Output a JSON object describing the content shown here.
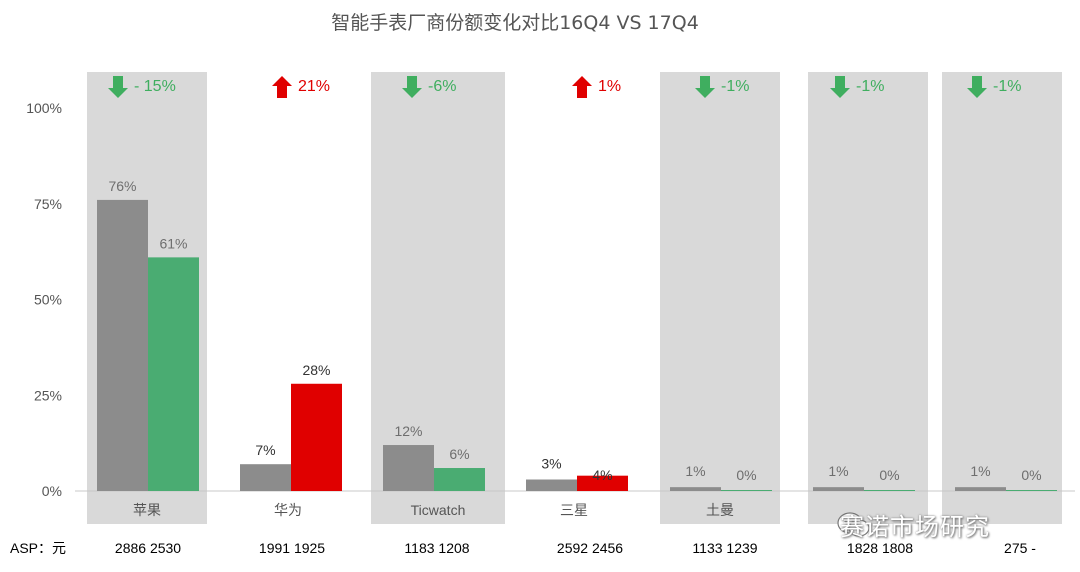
{
  "chart_data": {
    "type": "bar",
    "title": "智能手表厂商份额变化对比16Q4 VS 17Q4",
    "ylim": [
      0,
      100
    ],
    "yticks": [
      "0%",
      "25%",
      "50%",
      "75%",
      "100%"
    ],
    "categories": [
      "苹果",
      "华为",
      "Ticwatch",
      "三星",
      "土曼",
      "",
      ""
    ],
    "series": [
      {
        "values": [
          76,
          7,
          12,
          3,
          1,
          1,
          1
        ],
        "labels": [
          "76%",
          "7%",
          "12%",
          "3%",
          "1%",
          "1%",
          "1%"
        ]
      },
      {
        "values": [
          61,
          28,
          6,
          4,
          0,
          0,
          0
        ],
        "labels": [
          "61%",
          "28%",
          "6%",
          "4%",
          "0%",
          "0%",
          "0%"
        ]
      }
    ],
    "changes": [
      {
        "text": "- 15%",
        "direction": "down"
      },
      {
        "text": "21%",
        "direction": "up"
      },
      {
        "text": "-6%",
        "direction": "down"
      },
      {
        "text": "1%",
        "direction": "up"
      },
      {
        "text": "-1%",
        "direction": "down"
      },
      {
        "text": "-1%",
        "direction": "down"
      },
      {
        "text": "-1%",
        "direction": "down"
      }
    ],
    "asp_label": "ASP：元",
    "asp": [
      "2886 2530",
      "1991 1925",
      "1183 1208",
      "2592 2456",
      "1133  1239",
      "1828 1808",
      "275  -"
    ],
    "shaded_groups": [
      true,
      false,
      true,
      false,
      true,
      true,
      true
    ],
    "colors": {
      "series1": "#8c8c8c",
      "series2_down": "#4aac72",
      "series2_up": "#e00000",
      "arrow_down": "#3fae5f",
      "arrow_up": "#e00000",
      "shade": "#d9d9d9",
      "tick_text": "#555555"
    }
  },
  "watermark": "赛诺市场研究",
  "watermark_icon": "wechat-icon"
}
